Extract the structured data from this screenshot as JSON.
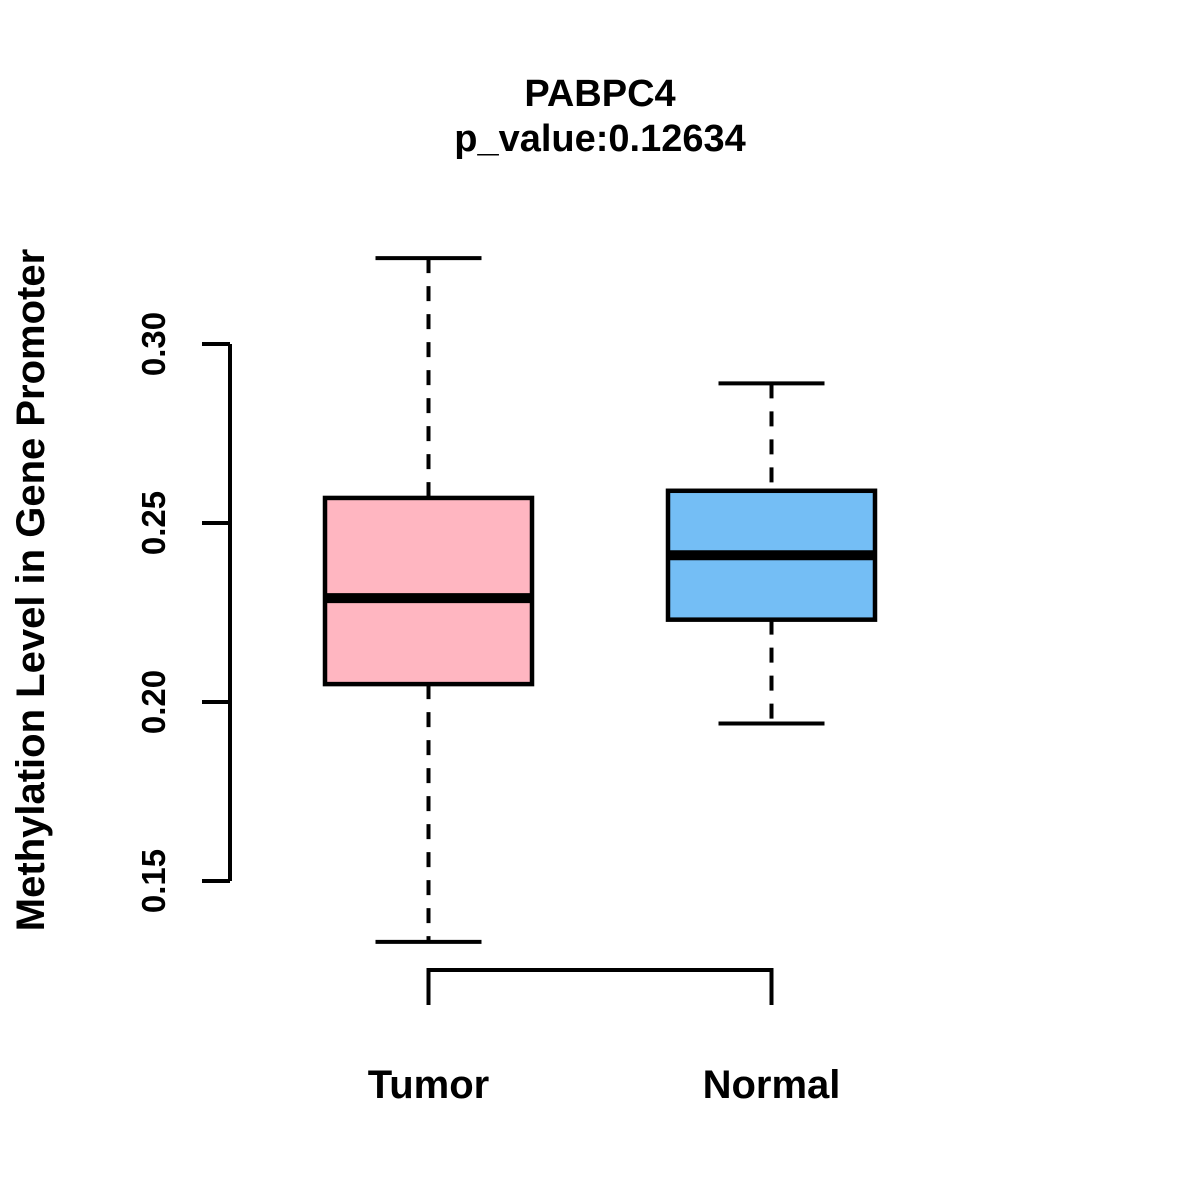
{
  "figure": {
    "title": "PABPC4",
    "subtitle": "p_value:0.12634",
    "y_axis_label": "Methylation Level in Gene Promoter",
    "background": "#FFFFFF"
  },
  "chart_data": {
    "type": "boxplot",
    "title": "PABPC4",
    "subtitle": "p_value:0.12634",
    "gene": "PABPC4",
    "p_value": 0.12634,
    "ylabel": "Methylation Level in Gene Promoter",
    "xlabel": "",
    "grid": false,
    "legend_position": "none",
    "y_ticks": [
      0.15,
      0.2,
      0.25,
      0.3
    ],
    "y_tick_labels": [
      "0.15",
      "0.20",
      "0.25",
      "0.30"
    ],
    "categories": [
      "Tumor",
      "Normal"
    ],
    "series": [
      {
        "name": "Tumor",
        "fill_color": "#FFB6C1",
        "stroke_color": "#000000",
        "whisker_low": 0.133,
        "q1": 0.205,
        "median": 0.229,
        "q3": 0.257,
        "whisker_high": 0.324
      },
      {
        "name": "Normal",
        "fill_color": "#74BEF5",
        "stroke_color": "#000000",
        "whisker_low": 0.194,
        "q1": 0.223,
        "median": 0.241,
        "q3": 0.259,
        "whisker_high": 0.289
      }
    ]
  }
}
